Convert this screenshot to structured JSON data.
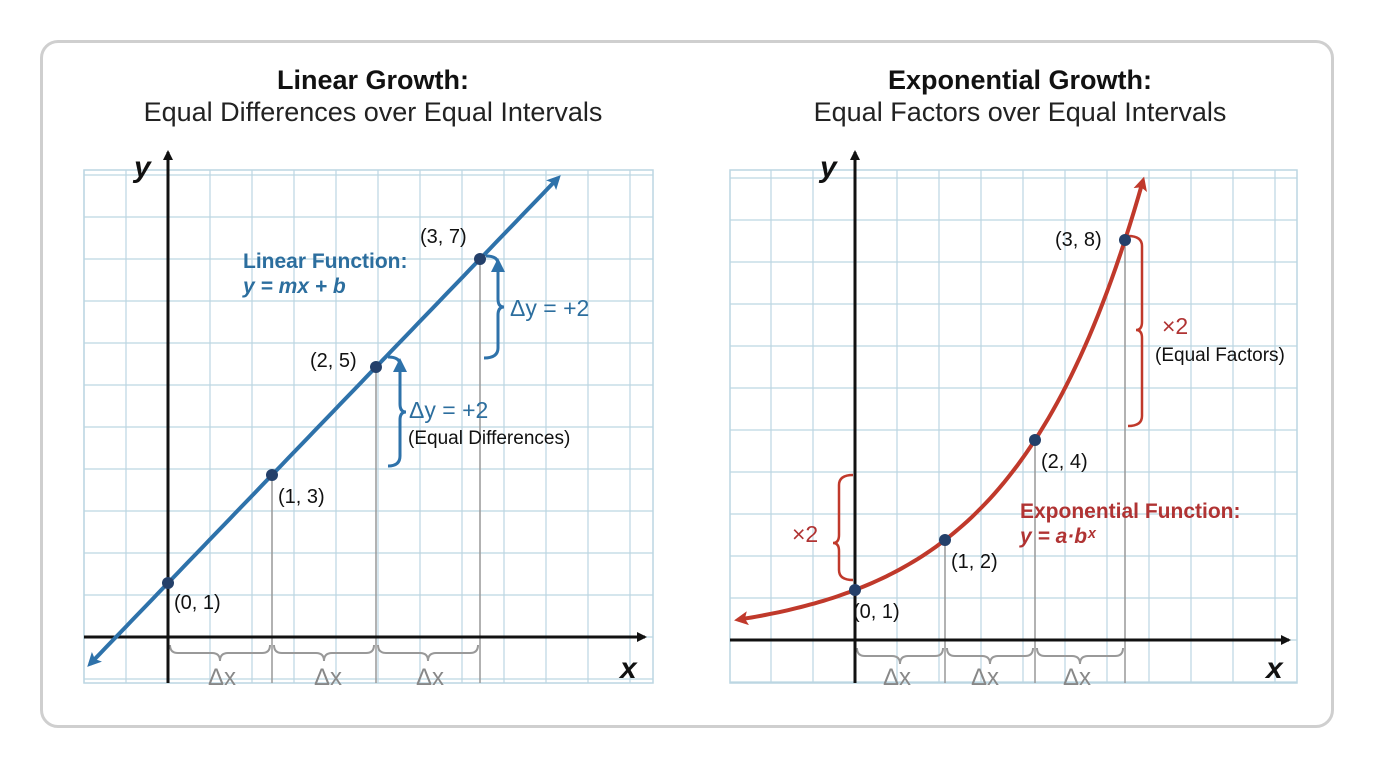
{
  "panels": {
    "linear": {
      "title": "Linear Growth:",
      "subtitle": "Equal Differences over Equal Intervals",
      "function_label": "Linear Function:",
      "function_formula": "y = mx + b",
      "delta_upper": "Δy = +2",
      "delta_lower": "Δy = +2",
      "delta_note": "(Equal Differences)",
      "dx_labels": [
        "Δx",
        "Δx",
        "Δx"
      ],
      "x_axis_label": "x",
      "y_axis_label": "y"
    },
    "exponential": {
      "title": "Exponential Growth:",
      "subtitle": "Equal Factors over Equal Intervals",
      "function_label": "Exponential Function:",
      "function_formula": "y = a·bˣ",
      "factor_upper": "×2",
      "factor_note": "(Equal Factors)",
      "factor_lower": "×2",
      "dx_labels": [
        "Δx",
        "Δx",
        "Δx"
      ],
      "x_axis_label": "x",
      "y_axis_label": "y"
    }
  },
  "colors": {
    "linear": "#2e72aa",
    "exponential": "#c0392b",
    "point": "#24406a",
    "grid": "#bcd6e2"
  },
  "chart_data": [
    {
      "type": "line",
      "title": "Linear Growth: Equal Differences over Equal Intervals",
      "xlabel": "x",
      "ylabel": "y",
      "grid": true,
      "points": [
        {
          "x": 0,
          "y": 1,
          "label": "(0, 1)"
        },
        {
          "x": 1,
          "y": 3,
          "label": "(1, 3)"
        },
        {
          "x": 2,
          "y": 5,
          "label": "(2, 5)"
        },
        {
          "x": 3,
          "y": 7,
          "label": "(3, 7)"
        }
      ],
      "function": "y = 2x + 1"
    },
    {
      "type": "line",
      "title": "Exponential Growth: Equal Factors over Equal Intervals",
      "xlabel": "x",
      "ylabel": "y",
      "grid": true,
      "points": [
        {
          "x": 0,
          "y": 1,
          "label": "(0, 1)"
        },
        {
          "x": 1,
          "y": 2,
          "label": "(1, 2)"
        },
        {
          "x": 2,
          "y": 4,
          "label": "(2, 4)"
        },
        {
          "x": 3,
          "y": 8,
          "label": "(3, 8)"
        }
      ],
      "function": "y = 2^x"
    }
  ]
}
